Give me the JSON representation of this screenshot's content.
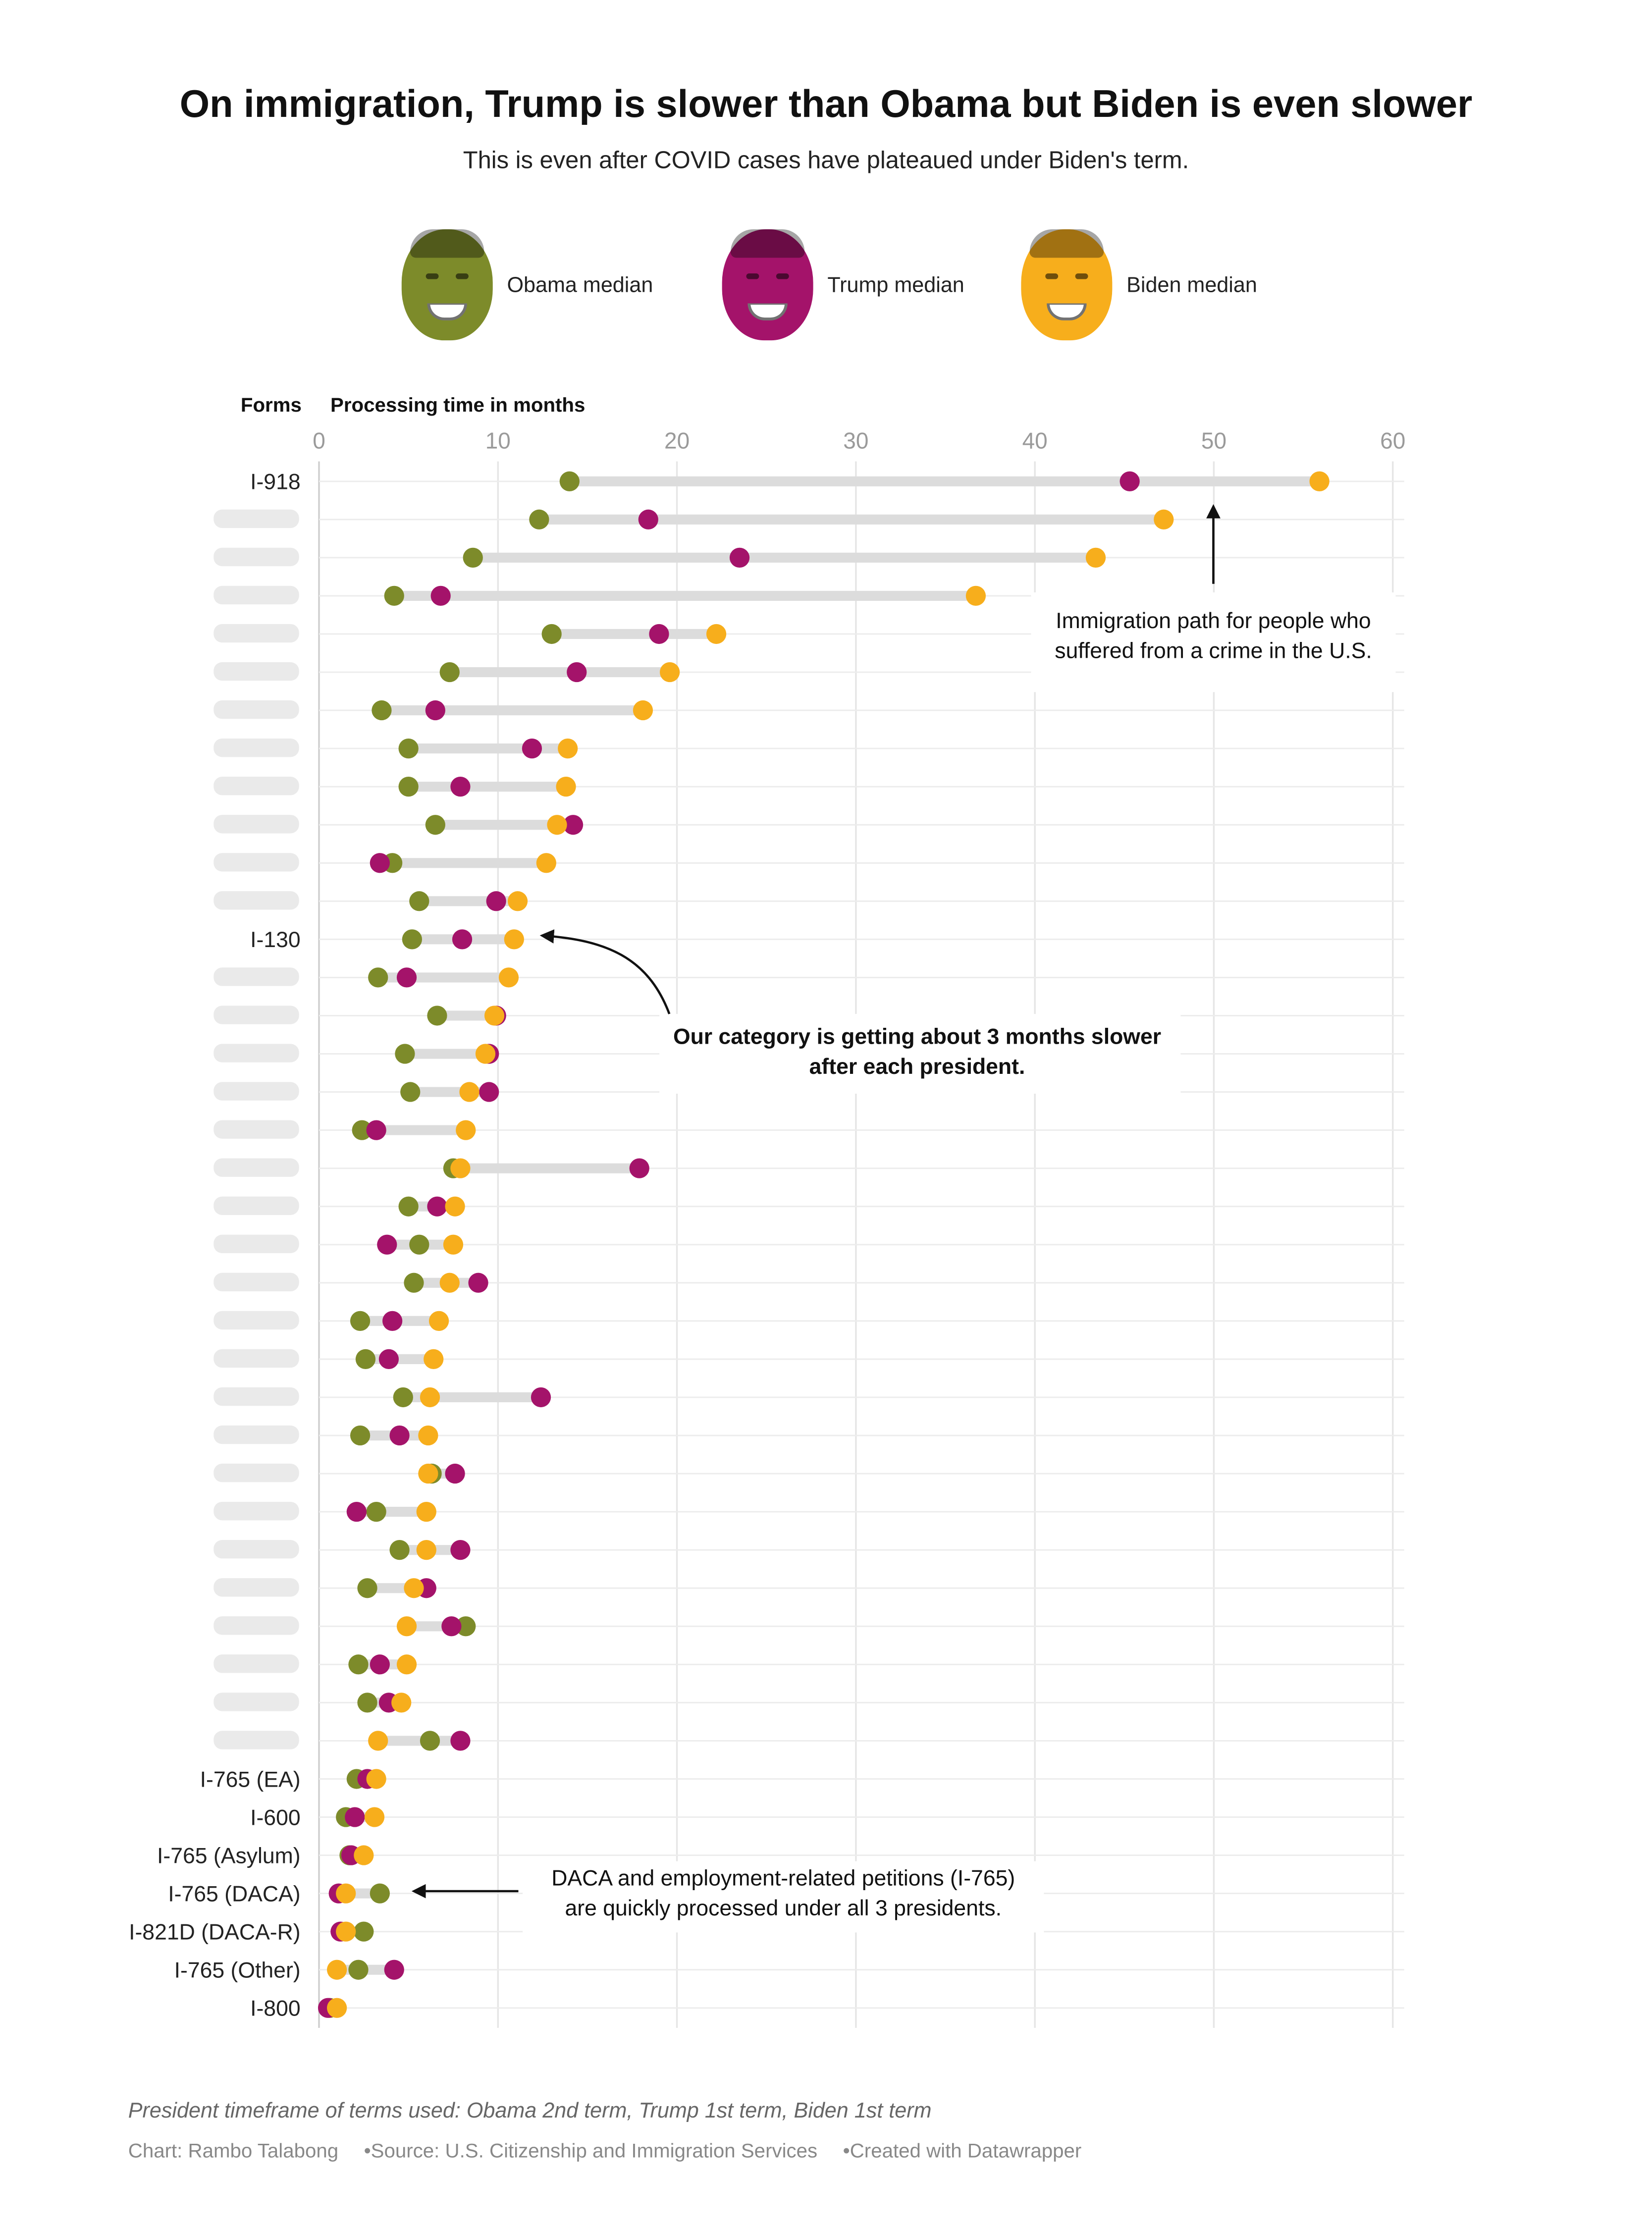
{
  "title": "On immigration, Trump is slower than Obama but Biden is even slower",
  "subtitle": "This is even after COVID cases have plateaued under Biden's term.",
  "legend": [
    {
      "label": "Obama median",
      "color": "#7d8b2a",
      "icon": "obama-face-icon"
    },
    {
      "label": "Trump median",
      "color": "#a4136a",
      "icon": "trump-face-icon"
    },
    {
      "label": "Biden median",
      "color": "#f7ae1c",
      "icon": "biden-face-icon"
    }
  ],
  "chart_data": {
    "type": "dot-range",
    "row_header": "Forms",
    "axis_title": "Processing time in months",
    "xlim": [
      0,
      60
    ],
    "ticks": [
      0,
      10,
      20,
      30,
      40,
      50,
      60
    ],
    "series": [
      "Obama median",
      "Trump median",
      "Biden median"
    ],
    "colors": {
      "obama": "#7d8b2a",
      "trump": "#a4136a",
      "biden": "#f7ae1c"
    },
    "rows": [
      {
        "label": "I-918",
        "obama": 14.0,
        "trump": 45.3,
        "biden": 55.9
      },
      {
        "label": "",
        "obama": 12.3,
        "trump": 18.4,
        "biden": 47.2
      },
      {
        "label": "",
        "obama": 8.6,
        "trump": 23.5,
        "biden": 43.4
      },
      {
        "label": "",
        "obama": 4.2,
        "trump": 6.8,
        "biden": 36.7
      },
      {
        "label": "",
        "obama": 13.0,
        "trump": 19.0,
        "biden": 22.2
      },
      {
        "label": "",
        "obama": 7.3,
        "trump": 14.4,
        "biden": 19.6
      },
      {
        "label": "",
        "obama": 3.5,
        "trump": 6.5,
        "biden": 18.1
      },
      {
        "label": "",
        "obama": 5.0,
        "trump": 11.9,
        "biden": 13.9
      },
      {
        "label": "",
        "obama": 5.0,
        "trump": 7.9,
        "biden": 13.8
      },
      {
        "label": "",
        "obama": 6.5,
        "trump": 14.2,
        "biden": 13.3
      },
      {
        "label": "",
        "obama": 4.1,
        "trump": 3.4,
        "biden": 12.7
      },
      {
        "label": "",
        "obama": 5.6,
        "trump": 9.9,
        "biden": 11.1
      },
      {
        "label": "I-130",
        "obama": 5.2,
        "trump": 8.0,
        "biden": 10.9
      },
      {
        "label": "",
        "obama": 3.3,
        "trump": 4.9,
        "biden": 10.6
      },
      {
        "label": "",
        "obama": 6.6,
        "trump": 9.9,
        "biden": 9.8
      },
      {
        "label": "",
        "obama": 4.8,
        "trump": 9.5,
        "biden": 9.3
      },
      {
        "label": "",
        "obama": 5.1,
        "trump": 9.5,
        "biden": 8.4
      },
      {
        "label": "",
        "obama": 2.4,
        "trump": 3.2,
        "biden": 8.2
      },
      {
        "label": "",
        "obama": 7.5,
        "trump": 17.9,
        "biden": 7.9
      },
      {
        "label": "",
        "obama": 5.0,
        "trump": 6.6,
        "biden": 7.6
      },
      {
        "label": "",
        "obama": 5.6,
        "trump": 3.8,
        "biden": 7.5
      },
      {
        "label": "",
        "obama": 5.3,
        "trump": 8.9,
        "biden": 7.3
      },
      {
        "label": "",
        "obama": 2.3,
        "trump": 4.1,
        "biden": 6.7
      },
      {
        "label": "",
        "obama": 2.6,
        "trump": 3.9,
        "biden": 6.4
      },
      {
        "label": "",
        "obama": 4.7,
        "trump": 12.4,
        "biden": 6.2
      },
      {
        "label": "",
        "obama": 2.3,
        "trump": 4.5,
        "biden": 6.1
      },
      {
        "label": "",
        "obama": 6.3,
        "trump": 7.6,
        "biden": 6.1
      },
      {
        "label": "",
        "obama": 3.2,
        "trump": 2.1,
        "biden": 6.0
      },
      {
        "label": "",
        "obama": 4.5,
        "trump": 7.9,
        "biden": 6.0
      },
      {
        "label": "",
        "obama": 2.7,
        "trump": 6.0,
        "biden": 5.3
      },
      {
        "label": "",
        "obama": 8.2,
        "trump": 7.4,
        "biden": 4.9
      },
      {
        "label": "",
        "obama": 2.2,
        "trump": 3.4,
        "biden": 4.9
      },
      {
        "label": "",
        "obama": 2.7,
        "trump": 3.9,
        "biden": 4.6
      },
      {
        "label": "",
        "obama": 6.2,
        "trump": 7.9,
        "biden": 3.3
      },
      {
        "label": "I-765 (EA)",
        "obama": 2.1,
        "trump": 2.7,
        "biden": 3.2
      },
      {
        "label": "I-600",
        "obama": 1.5,
        "trump": 2.0,
        "biden": 3.1
      },
      {
        "label": "I-765 (Asylum)",
        "obama": 1.7,
        "trump": 1.8,
        "biden": 2.5
      },
      {
        "label": "I-765 (DACA)",
        "obama": 3.4,
        "trump": 1.1,
        "biden": 1.5
      },
      {
        "label": "I-821D (DACA-R)",
        "obama": 2.5,
        "trump": 1.2,
        "biden": 1.5
      },
      {
        "label": "I-765 (Other)",
        "obama": 2.2,
        "trump": 4.2,
        "biden": 1.0
      },
      {
        "label": "I-800",
        "obama": 0.6,
        "trump": 0.5,
        "biden": 1.0
      }
    ],
    "annotations": [
      {
        "text": [
          "Immigration path for people who",
          "suffered from a crime in the U.S."
        ]
      },
      {
        "text": [
          "Our category is getting about 3 months slower",
          "after each president."
        ]
      },
      {
        "text": [
          "DACA and employment-related petitions (I-765)",
          "are quickly processed under all 3 presidents."
        ]
      }
    ]
  },
  "footer": {
    "note": "President timeframe of terms used: Obama 2nd term, Trump 1st term, Biden 1st term",
    "chart_credit": "Chart: Rambo Talabong",
    "source": "•Source: U.S. Citizenship and Immigration Services",
    "created": "•Created with Datawrapper"
  }
}
